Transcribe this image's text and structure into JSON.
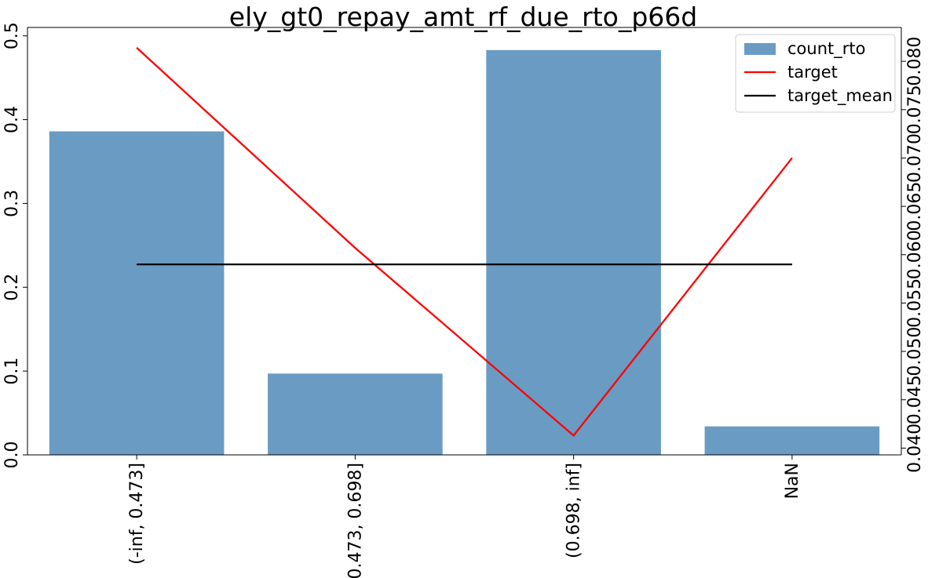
{
  "chart_data": {
    "type": "bar",
    "title": "ely_gt0_repay_amt_rf_due_rto_p66d",
    "categories": [
      "(-inf, 0.473]",
      "(0.473, 0.698]",
      "(0.698, inf]",
      "NaN"
    ],
    "series": [
      {
        "name": "count_rto",
        "kind": "bar",
        "axis": "left",
        "color": "#6a9bc3",
        "values": [
          0.386,
          0.097,
          0.483,
          0.034
        ]
      },
      {
        "name": "target",
        "kind": "line",
        "axis": "right",
        "color": "#ff0000",
        "values": [
          0.0814,
          0.0607,
          0.0413,
          0.07
        ]
      },
      {
        "name": "target_mean",
        "kind": "line",
        "axis": "right",
        "color": "#000000",
        "values": [
          0.059,
          0.059,
          0.059,
          0.059
        ]
      }
    ],
    "y_left": {
      "lim": [
        0,
        0.51
      ],
      "ticks": [
        0.0,
        0.1,
        0.2,
        0.3,
        0.4,
        0.5
      ],
      "tick_labels": [
        "0.0",
        "0.1",
        "0.2",
        "0.3",
        "0.4",
        "0.5"
      ]
    },
    "y_right": {
      "lim": [
        0.0393,
        0.0835
      ],
      "ticks": [
        0.04,
        0.045,
        0.05,
        0.055,
        0.06,
        0.065,
        0.07,
        0.075,
        0.08
      ],
      "tick_labels": [
        "0.040",
        "0.045",
        "0.050",
        "0.055",
        "0.060",
        "0.065",
        "0.070",
        "0.075",
        "0.080"
      ]
    },
    "xlabel": "",
    "ylabel": "",
    "grid": false,
    "legend": "top-right"
  }
}
